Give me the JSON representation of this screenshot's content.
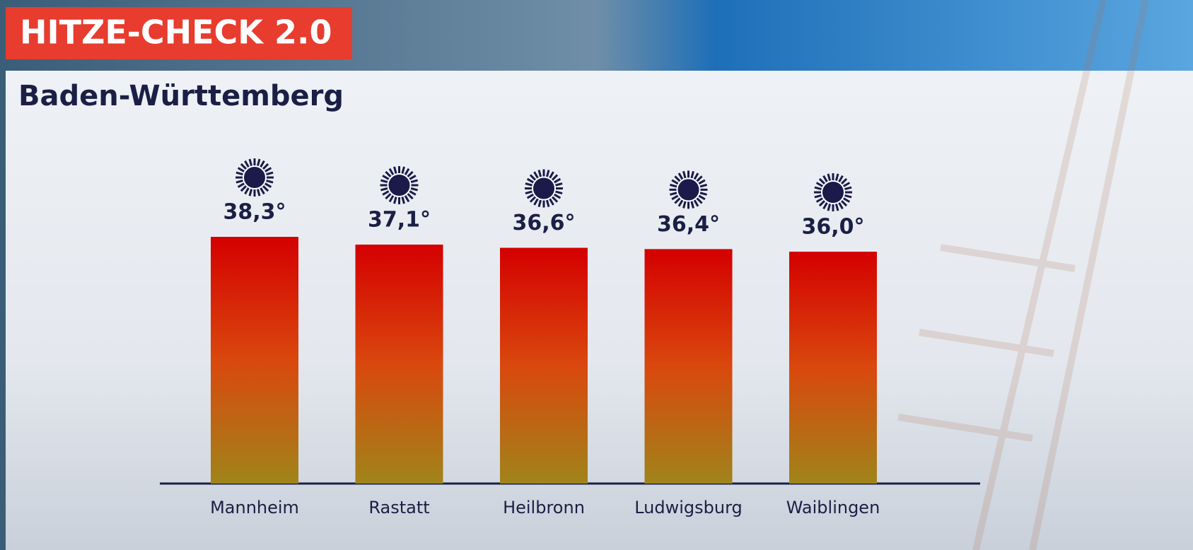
{
  "chart_data": {
    "type": "bar",
    "title": "HITZE-CHECK 2.0",
    "subtitle": "Baden-Württemberg",
    "categories": [
      "Mannheim",
      "Rastatt",
      "Heilbronn",
      "Ludwigsburg",
      "Waiblingen"
    ],
    "values": [
      38.3,
      37.1,
      36.6,
      36.4,
      36.0
    ],
    "value_labels": [
      "38,3°",
      "37,1°",
      "36,6°",
      "36,4°",
      "36,0°"
    ],
    "color": "#d40000",
    "ylim": [
      0,
      45
    ]
  }
}
